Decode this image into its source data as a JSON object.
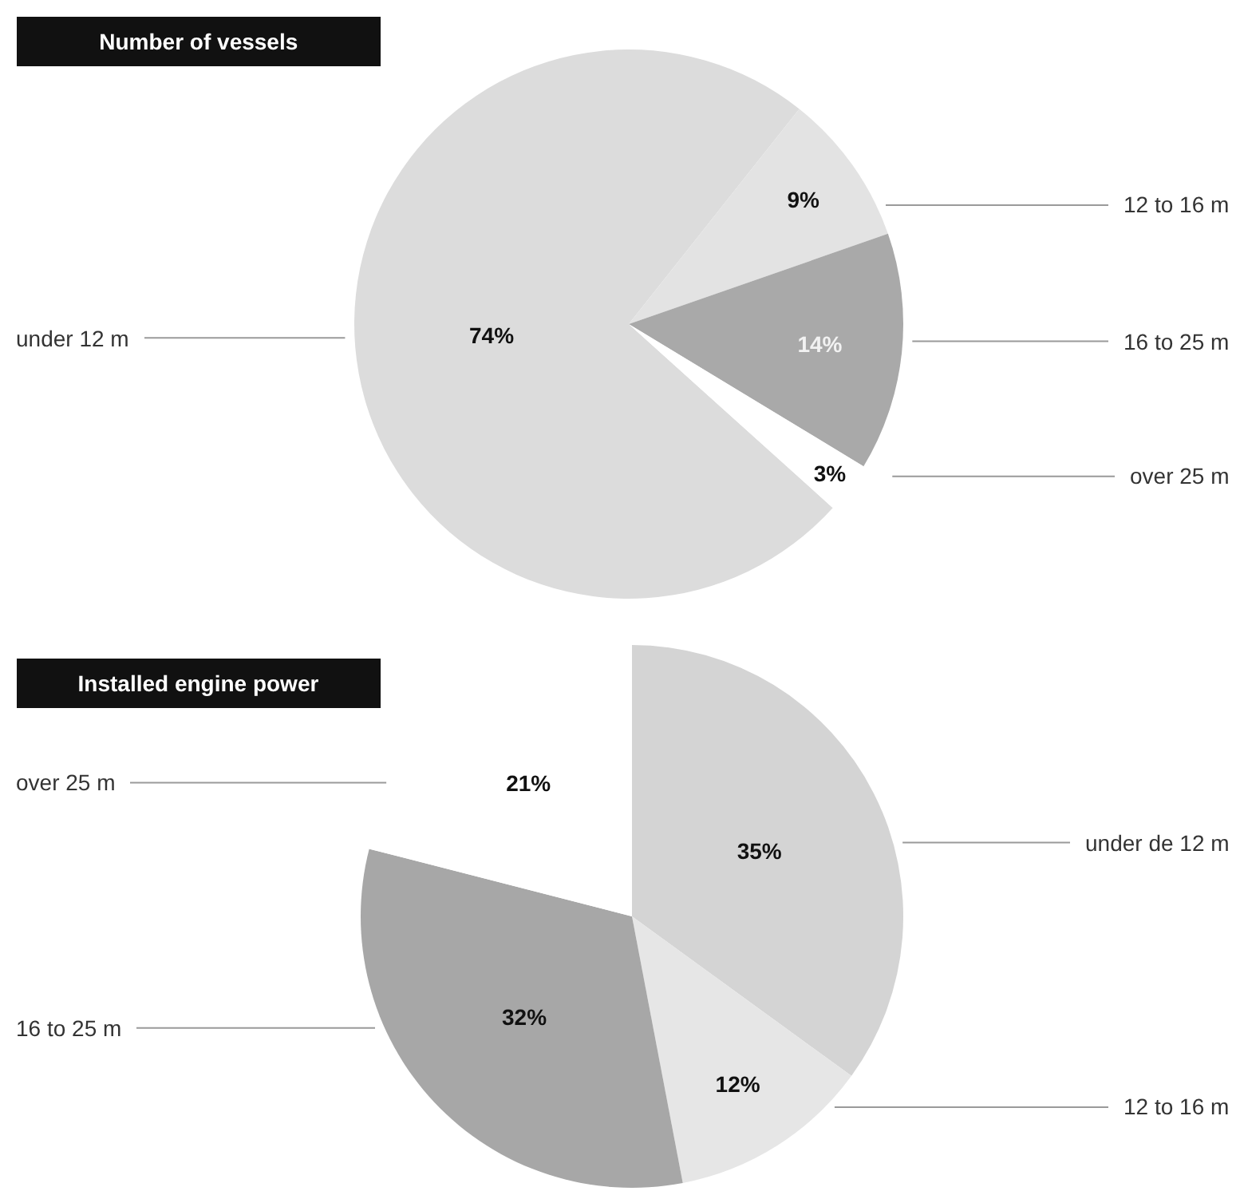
{
  "chart_data": [
    {
      "type": "pie",
      "title": "Number of vessels",
      "categories": [
        "under 12 m",
        "12 to 16 m",
        "16 to 25 m",
        "over 25 m"
      ],
      "values": [
        74,
        9,
        14,
        3
      ],
      "colors": [
        "#dcdcdc",
        "#e3e3e3",
        "#a9a9a9",
        "#ffffff"
      ],
      "value_labels": [
        "74%",
        "9%",
        "14%",
        "3%"
      ]
    },
    {
      "type": "pie",
      "title": "Installed engine power",
      "categories": [
        "under de 12 m",
        "12 to 16 m",
        "16 to 25 m",
        "over 25 m"
      ],
      "values": [
        35,
        12,
        32,
        21
      ],
      "colors": [
        "#d4d4d4",
        "#e6e6e6",
        "#a7a7a7",
        "#ffffff"
      ],
      "value_labels": [
        "35%",
        "12%",
        "32%",
        "21%"
      ]
    }
  ]
}
